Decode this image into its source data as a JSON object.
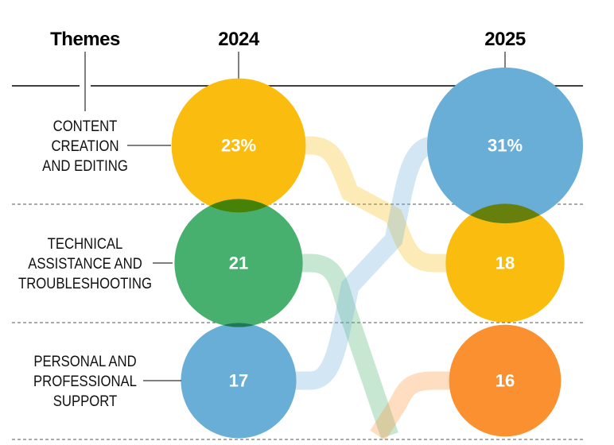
{
  "chart_data": {
    "type": "bump-bubble",
    "column_header": "Themes",
    "years": [
      "2024",
      "2025"
    ],
    "rows": [
      {
        "theme": [
          "CONTENT",
          "CREATION",
          "AND EDITING"
        ]
      },
      {
        "theme": [
          "TECHNICAL",
          "ASSISTANCE AND",
          "TROUBLESHOOTING"
        ]
      },
      {
        "theme": [
          "PERSONAL AND",
          "PROFESSIONAL",
          "SUPPORT"
        ]
      }
    ],
    "series": [
      {
        "color": "#F9BC0F",
        "rank_2024": 1,
        "rank_2025": 2,
        "value_2024": 23,
        "label_2024": "23%",
        "value_2025": 18,
        "label_2025": "18"
      },
      {
        "color": "#47B06E",
        "rank_2024": 2,
        "rank_2025": 4,
        "value_2024": 21,
        "label_2024": "21"
      },
      {
        "color": "#69AED6",
        "rank_2024": 3,
        "rank_2025": 1,
        "value_2024": 17,
        "label_2024": "17",
        "value_2025": 31,
        "label_2025": "31%"
      },
      {
        "color": "#FB9031",
        "rank_2024": 4,
        "rank_2025": 3,
        "value_2025": 16,
        "label_2025": "16"
      }
    ]
  }
}
